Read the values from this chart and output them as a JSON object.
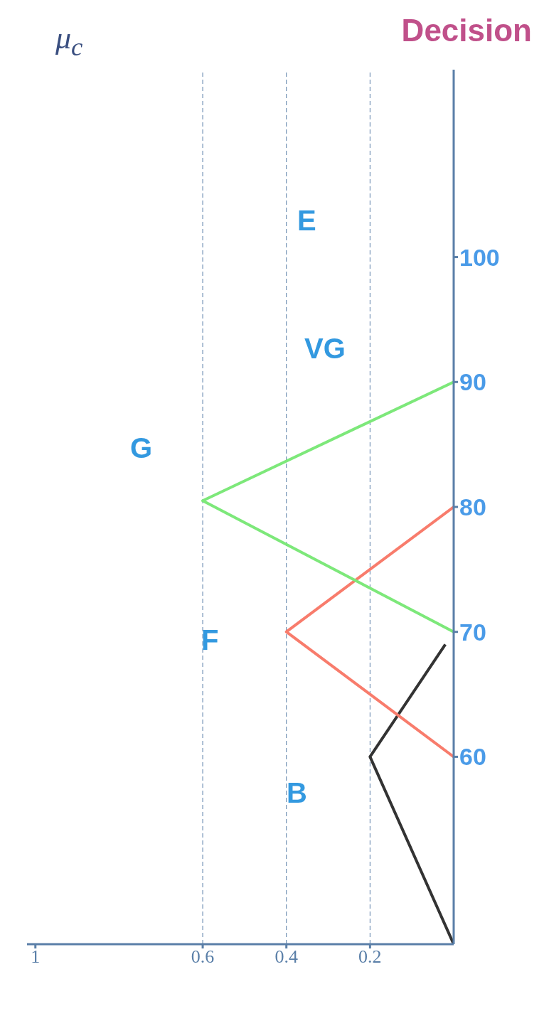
{
  "chart_data": {
    "type": "line",
    "xlabel": "μ$_{c}$",
    "ylabel": "Decision",
    "xlim": [
      1.02,
      0
    ],
    "xticks": [
      0.2,
      0.4,
      0.6,
      1
    ],
    "ylim": [
      45,
      115
    ],
    "yticks": [
      60,
      70,
      80,
      90,
      100
    ],
    "series": [
      {
        "color": "#333333",
        "x": [
          0,
          0.2,
          0.02
        ],
        "values": [
          45,
          60,
          69
        ]
      },
      {
        "color": "#f87c6c",
        "x": [
          0,
          0.4,
          0
        ],
        "values": [
          60,
          70,
          80
        ]
      },
      {
        "color": "#7de87a",
        "x": [
          0,
          0.6,
          0
        ],
        "values": [
          70,
          80.5,
          90
        ]
      }
    ],
    "ref_lines": [
      {
        "axis": "x",
        "value": 0.2,
        "line_style": "dashed",
        "color": "#5a7fa8"
      },
      {
        "axis": "x",
        "value": 0.4,
        "line_style": "dashed",
        "color": "#5a7fa8"
      },
      {
        "axis": "x",
        "value": 0.6,
        "line_style": "dashed",
        "color": "#5a7fa8"
      }
    ],
    "annotations": [
      "B",
      "F",
      "G",
      "VG",
      "E"
    ],
    "marker": "none",
    "line_style": "solid"
  }
}
